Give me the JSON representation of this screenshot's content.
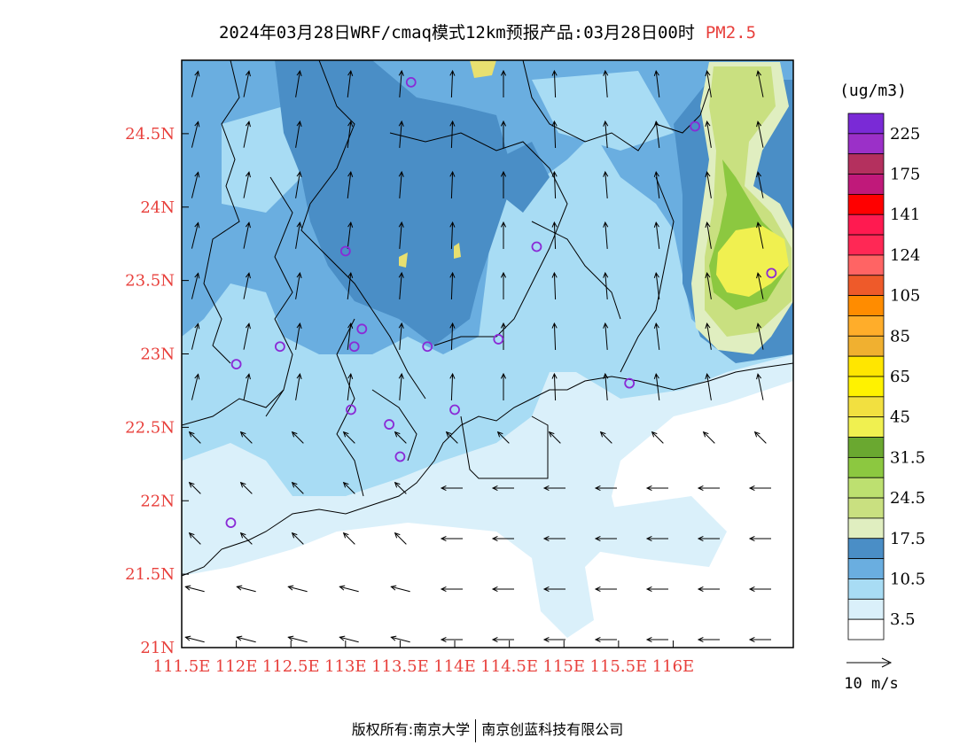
{
  "title": {
    "main": "2024年03月28日WRF/cmaq模式12km预报产品:03月28日00时",
    "pollutant": "PM2.5"
  },
  "axes": {
    "x_ticks": [
      "111.5E",
      "112E",
      "112.5E",
      "113E",
      "113.5E",
      "114E",
      "114.5E",
      "115E",
      "115.5E",
      "116E"
    ],
    "x_values": [
      111.5,
      112,
      112.5,
      113,
      113.5,
      114,
      114.5,
      115,
      115.5,
      116
    ],
    "y_ticks": [
      "21N",
      "21.5N",
      "22N",
      "22.5N",
      "23N",
      "23.5N",
      "24N",
      "24.5N"
    ],
    "y_values": [
      21,
      21.5,
      22,
      22.5,
      23,
      23.5,
      24,
      24.5
    ],
    "x_range": [
      111.5,
      117.1
    ],
    "y_range": [
      21,
      25
    ],
    "tick_color": "#e8403c"
  },
  "legend": {
    "unit": "(ug/m3)",
    "labels": [
      "225",
      "175",
      "141",
      "124",
      "105",
      "85",
      "65",
      "45",
      "31.5",
      "24.5",
      "17.5",
      "10.5",
      "3.5"
    ],
    "colors_top_to_bottom": [
      "#7a2ad6",
      "#9b30c8",
      "#b4305e",
      "#c0197a",
      "#ff0000",
      "#ff1a50",
      "#ff2855",
      "#ff6464",
      "#ee5a2a",
      "#ff8c00",
      "#ffad2a",
      "#f0b030",
      "#ffe600",
      "#fff200",
      "#f2e040",
      "#f0f050",
      "#6aa830",
      "#8cc840",
      "#bde070",
      "#c9e080",
      "#e0eec0",
      "#4a8ec6",
      "#6aaee0",
      "#a8dcf4",
      "#daf0fa",
      "#ffffff"
    ]
  },
  "wind_scale": {
    "label": "10 m/s"
  },
  "stations": [
    {
      "lon": 113.6,
      "lat": 24.85
    },
    {
      "lon": 116.2,
      "lat": 24.55
    },
    {
      "lon": 113.0,
      "lat": 23.7
    },
    {
      "lon": 114.75,
      "lat": 23.73
    },
    {
      "lon": 116.9,
      "lat": 23.55
    },
    {
      "lon": 113.15,
      "lat": 23.17
    },
    {
      "lon": 112.4,
      "lat": 23.05
    },
    {
      "lon": 113.08,
      "lat": 23.05
    },
    {
      "lon": 113.75,
      "lat": 23.05
    },
    {
      "lon": 114.4,
      "lat": 23.1
    },
    {
      "lon": 112.0,
      "lat": 22.93
    },
    {
      "lon": 115.6,
      "lat": 22.8
    },
    {
      "lon": 113.05,
      "lat": 22.62
    },
    {
      "lon": 113.4,
      "lat": 22.52
    },
    {
      "lon": 114.0,
      "lat": 22.62
    },
    {
      "lon": 113.5,
      "lat": 22.3
    },
    {
      "lon": 111.95,
      "lat": 21.85
    }
  ],
  "footer": {
    "left": "版权所有:南京大学",
    "right": "南京创蓝科技有限公司"
  }
}
